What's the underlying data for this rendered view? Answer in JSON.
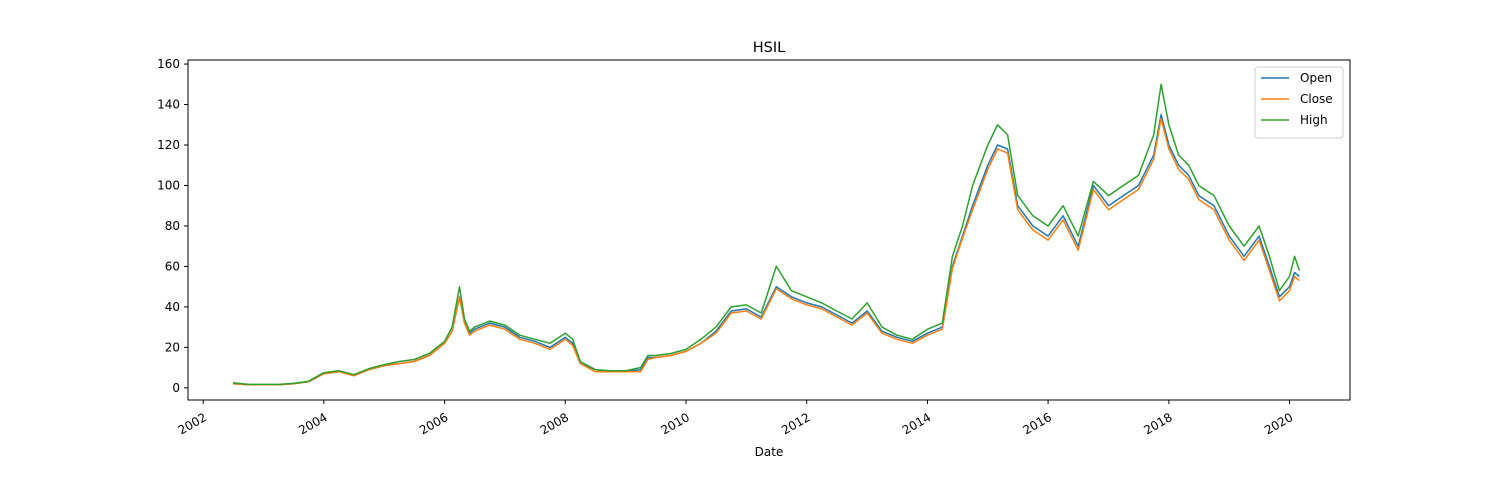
{
  "chart_data": {
    "type": "line",
    "title": "HSIL",
    "xlabel": "Date",
    "ylabel": "",
    "xlim": [
      "2001-10-01",
      "2021-01-01"
    ],
    "ylim": [
      -6,
      162
    ],
    "x_ticks": [
      "2002",
      "2004",
      "2006",
      "2008",
      "2010",
      "2012",
      "2014",
      "2016",
      "2018",
      "2020"
    ],
    "y_ticks": [
      0,
      20,
      40,
      60,
      80,
      100,
      120,
      140,
      160
    ],
    "legend_position": "top-right",
    "grid": false,
    "colors": {
      "Open": "#1f77b4",
      "Close": "#ff7f0e",
      "High": "#2ca02c"
    },
    "x": [
      "2002-07-01",
      "2002-10-01",
      "2003-01-01",
      "2003-04-01",
      "2003-07-01",
      "2003-10-01",
      "2004-01-01",
      "2004-04-01",
      "2004-07-01",
      "2004-10-01",
      "2005-01-01",
      "2005-04-01",
      "2005-07-01",
      "2005-10-01",
      "2006-01-01",
      "2006-02-15",
      "2006-04-01",
      "2006-05-01",
      "2006-06-01",
      "2006-07-01",
      "2006-10-01",
      "2007-01-01",
      "2007-04-01",
      "2007-07-01",
      "2007-10-01",
      "2008-01-01",
      "2008-02-15",
      "2008-04-01",
      "2008-07-01",
      "2008-10-01",
      "2009-01-01",
      "2009-04-01",
      "2009-05-15",
      "2009-07-01",
      "2009-10-01",
      "2010-01-01",
      "2010-04-01",
      "2010-07-01",
      "2010-10-01",
      "2011-01-01",
      "2011-04-01",
      "2011-07-01",
      "2011-10-01",
      "2012-01-01",
      "2012-04-01",
      "2012-07-01",
      "2012-10-01",
      "2013-01-01",
      "2013-04-01",
      "2013-07-01",
      "2013-10-01",
      "2014-01-01",
      "2014-04-01",
      "2014-06-01",
      "2014-08-01",
      "2014-10-01",
      "2015-01-01",
      "2015-03-01",
      "2015-05-01",
      "2015-07-01",
      "2015-10-01",
      "2016-01-01",
      "2016-04-01",
      "2016-07-01",
      "2016-10-01",
      "2017-01-01",
      "2017-04-01",
      "2017-07-01",
      "2017-10-01",
      "2017-11-15",
      "2018-01-01",
      "2018-03-01",
      "2018-05-01",
      "2018-07-01",
      "2018-10-01",
      "2019-01-01",
      "2019-04-01",
      "2019-07-01",
      "2019-09-01",
      "2019-11-01",
      "2020-01-01",
      "2020-02-01",
      "2020-03-01"
    ],
    "series": [
      {
        "name": "Open",
        "values": [
          2,
          1.5,
          1.5,
          1.5,
          2,
          3,
          7,
          8,
          6,
          9,
          11,
          12,
          13,
          16,
          22,
          28,
          45,
          32,
          27,
          29,
          32,
          30,
          25,
          23,
          20,
          25,
          22,
          12,
          9,
          8,
          8,
          9,
          15,
          15,
          16,
          18,
          22,
          28,
          38,
          39,
          35,
          50,
          45,
          42,
          40,
          36,
          32,
          38,
          28,
          25,
          23,
          27,
          30,
          60,
          75,
          90,
          110,
          120,
          118,
          90,
          80,
          75,
          85,
          70,
          100,
          90,
          95,
          100,
          115,
          135,
          120,
          110,
          105,
          95,
          90,
          75,
          65,
          75,
          60,
          45,
          50,
          57,
          55
        ]
      },
      {
        "name": "Close",
        "values": [
          2,
          1.5,
          1.5,
          1.5,
          2,
          3,
          7,
          8,
          6,
          9,
          11,
          12,
          13,
          16,
          22,
          28,
          45,
          32,
          26,
          28,
          31,
          29,
          24,
          22,
          19,
          24,
          21,
          12,
          8,
          8,
          8,
          8,
          14,
          15,
          16,
          18,
          22,
          27,
          37,
          38,
          34,
          49,
          44,
          41,
          39,
          35,
          31,
          37,
          27,
          24,
          22,
          26,
          29,
          59,
          74,
          88,
          108,
          118,
          116,
          88,
          78,
          73,
          83,
          68,
          98,
          88,
          93,
          98,
          113,
          133,
          118,
          108,
          103,
          93,
          88,
          73,
          63,
          73,
          58,
          43,
          48,
          55,
          53
        ]
      },
      {
        "name": "High",
        "values": [
          2.5,
          1.7,
          1.7,
          1.7,
          2.2,
          3.3,
          7.5,
          8.5,
          6.5,
          9.5,
          11.5,
          13,
          14,
          17,
          23,
          30,
          50,
          34,
          28,
          30,
          33,
          31,
          26,
          24,
          22,
          27,
          24,
          13,
          9,
          8.5,
          8.5,
          10,
          16,
          16,
          17,
          19,
          24,
          30,
          40,
          41,
          37,
          60,
          48,
          45,
          42,
          38,
          34,
          42,
          30,
          26,
          24,
          29,
          32,
          65,
          80,
          100,
          120,
          130,
          125,
          95,
          85,
          80,
          90,
          75,
          102,
          95,
          100,
          105,
          125,
          150,
          130,
          115,
          110,
          100,
          95,
          80,
          70,
          80,
          65,
          48,
          55,
          65,
          58
        ]
      }
    ]
  }
}
